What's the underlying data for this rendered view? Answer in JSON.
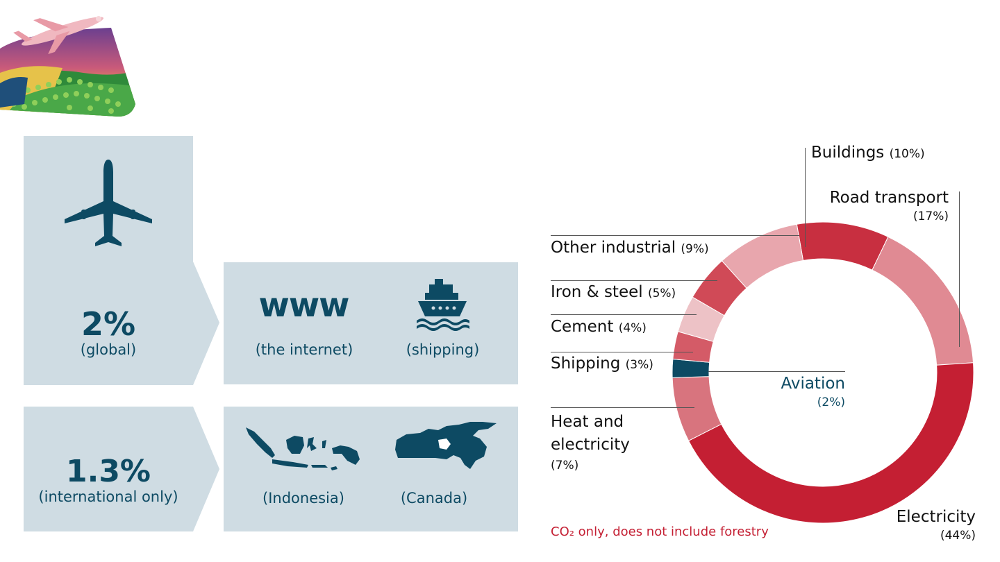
{
  "colors": {
    "panel": "#cfdce3",
    "navy": "#0d4a63",
    "electricity": "#c41f33",
    "road": "#e08a93",
    "buildings": "#c82f40",
    "other_industrial": "#e8a6ad",
    "iron_steel": "#d04a57",
    "cement": "#edc2c6",
    "shipping": "#d45b67",
    "aviation": "#0d4a63",
    "heat": "#d8747e"
  },
  "left": {
    "global_value": "2%",
    "global_sub": "(global)",
    "intl_value": "1.3%",
    "intl_sub": "(international only)",
    "internet_label": "(the internet)",
    "shipping_label": "(shipping)",
    "indonesia_label": "(Indonesia)",
    "canada_label": "(Canada)",
    "www_text": "www",
    "icons": [
      "airplane-icon",
      "ship-icon",
      "indonesia-map-icon",
      "canada-map-icon",
      "plane-landscape-illustration"
    ]
  },
  "chart_data": {
    "type": "pie",
    "style": "donut",
    "slices": [
      {
        "label": "Buildings",
        "pct_label": "(10%)",
        "value": 10
      },
      {
        "label": "Road transport",
        "pct_label": "(17%)",
        "value": 17
      },
      {
        "label": "Electricity",
        "pct_label": "(44%)",
        "value": 44
      },
      {
        "label": "Heat and electricity",
        "pct_label": "(7%)",
        "value": 7
      },
      {
        "label": "Aviation",
        "pct_label": "(2%)",
        "value": 2
      },
      {
        "label": "Shipping",
        "pct_label": "(3%)",
        "value": 3
      },
      {
        "label": "Cement",
        "pct_label": "(4%)",
        "value": 4
      },
      {
        "label": "Iron & steel",
        "pct_label": "(5%)",
        "value": 5
      },
      {
        "label": "Other industrial",
        "pct_label": "(9%)",
        "value": 9
      }
    ],
    "labels": {
      "buildings": "Buildings",
      "buildings_pct": "(10%)",
      "road_line1": "Road transport",
      "road_pct": "(17%)",
      "other_industrial": "Other industrial",
      "other_industrial_pct": "(9%)",
      "iron_steel": "Iron & steel",
      "iron_steel_pct": "(5%)",
      "cement": "Cement",
      "cement_pct": "(4%)",
      "shipping": "Shipping",
      "shipping_pct": "(3%)",
      "aviation": "Aviation",
      "aviation_pct": "(2%)",
      "heat_line1": "Heat and",
      "heat_line2": "electricity",
      "heat_pct": "(7%)",
      "electricity": "Electricity",
      "electricity_pct": "(44%)"
    },
    "note": "CO₂ only, does not include forestry"
  }
}
